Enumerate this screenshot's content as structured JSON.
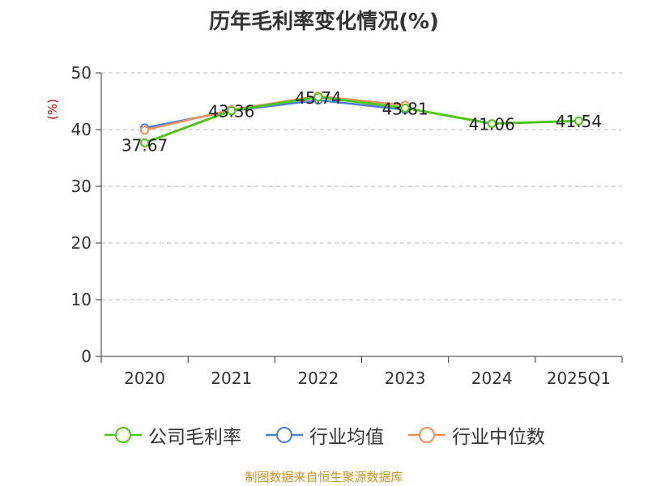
{
  "chart_data": {
    "type": "line",
    "title": "历年毛利率变化情况(%)",
    "ylabel": "(%)",
    "xlabel": "",
    "categories": [
      "2020",
      "2021",
      "2022",
      "2023",
      "2024",
      "2025Q1"
    ],
    "ylim": [
      0,
      50
    ],
    "yticks": [
      0,
      10,
      20,
      30,
      40,
      50
    ],
    "grid": "horizontal-dashed",
    "legend_position": "bottom",
    "series": [
      {
        "name": "公司毛利率",
        "color": "#52c41a",
        "values": [
          37.67,
          43.36,
          45.74,
          43.81,
          41.06,
          41.54
        ]
      },
      {
        "name": "行业均值",
        "color": "#4e7fd8",
        "values": [
          40.3,
          43.3,
          45.2,
          43.5,
          null,
          null
        ]
      },
      {
        "name": "行业中位数",
        "color": "#f5905a",
        "values": [
          39.9,
          43.5,
          45.9,
          44.3,
          null,
          null
        ]
      }
    ],
    "data_labels": [
      "37.67",
      "43.36",
      "45.74",
      "43.81",
      "41.06",
      "41.54"
    ]
  },
  "source": "制图数据来自恒生聚源数据库"
}
